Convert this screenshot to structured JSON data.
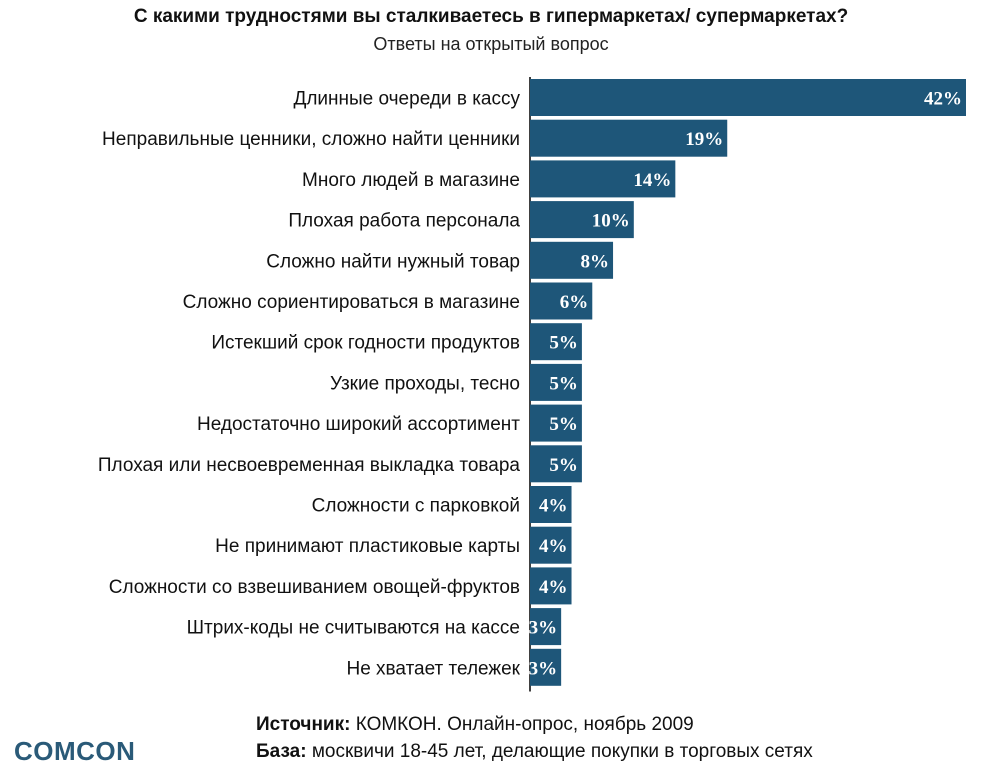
{
  "header": {
    "title": "С какими трудностями вы сталкиваетесь в гипермаркетах/ супермаркетах?",
    "subtitle": "Ответы на открытый вопрос"
  },
  "colors": {
    "bar": "#1e5679",
    "axis": "#000000"
  },
  "chart_data": {
    "type": "bar",
    "orientation": "horizontal",
    "title": "С какими трудностями вы сталкиваетесь в гипермаркетах/ супермаркетах?",
    "subtitle": "Ответы на открытый вопрос",
    "xlabel": "",
    "ylabel": "",
    "xlim": [
      0,
      42
    ],
    "grid": false,
    "categories": [
      "Длинные очереди в кассу",
      "Неправильные ценники, сложно найти ценники",
      "Много людей в магазине",
      "Плохая работа персонала",
      "Сложно найти нужный товар",
      "Сложно сориентироваться в магазине",
      "Истекший срок годности  продуктов",
      "Узкие проходы, тесно",
      "Недостаточно широкий ассортимент",
      "Плохая или несвоевременная выкладка товара",
      "Сложности с парковкой",
      "Не принимают пластиковые карты",
      "Сложности со взвешиванием овощей-фруктов",
      "Штрих-коды не считываются на кассе",
      "Не хватает тележек"
    ],
    "values": [
      42,
      19,
      14,
      10,
      8,
      6,
      5,
      5,
      5,
      5,
      4,
      4,
      4,
      3,
      3
    ],
    "value_labels": [
      "42%",
      "19%",
      "14%",
      "10%",
      "8%",
      "6%",
      "5%",
      "5%",
      "5%",
      "5%",
      "4%",
      "4%",
      "4%",
      "3%",
      "3%"
    ]
  },
  "footer": {
    "source_label": "Источник:",
    "source_text": " КОМКОН. Онлайн-опрос, ноябрь 2009",
    "base_label": "База:",
    "base_text": " москвичи 18-45 лет, делающие покупки в торговых сетях"
  },
  "logo": {
    "text": "COMCON"
  }
}
